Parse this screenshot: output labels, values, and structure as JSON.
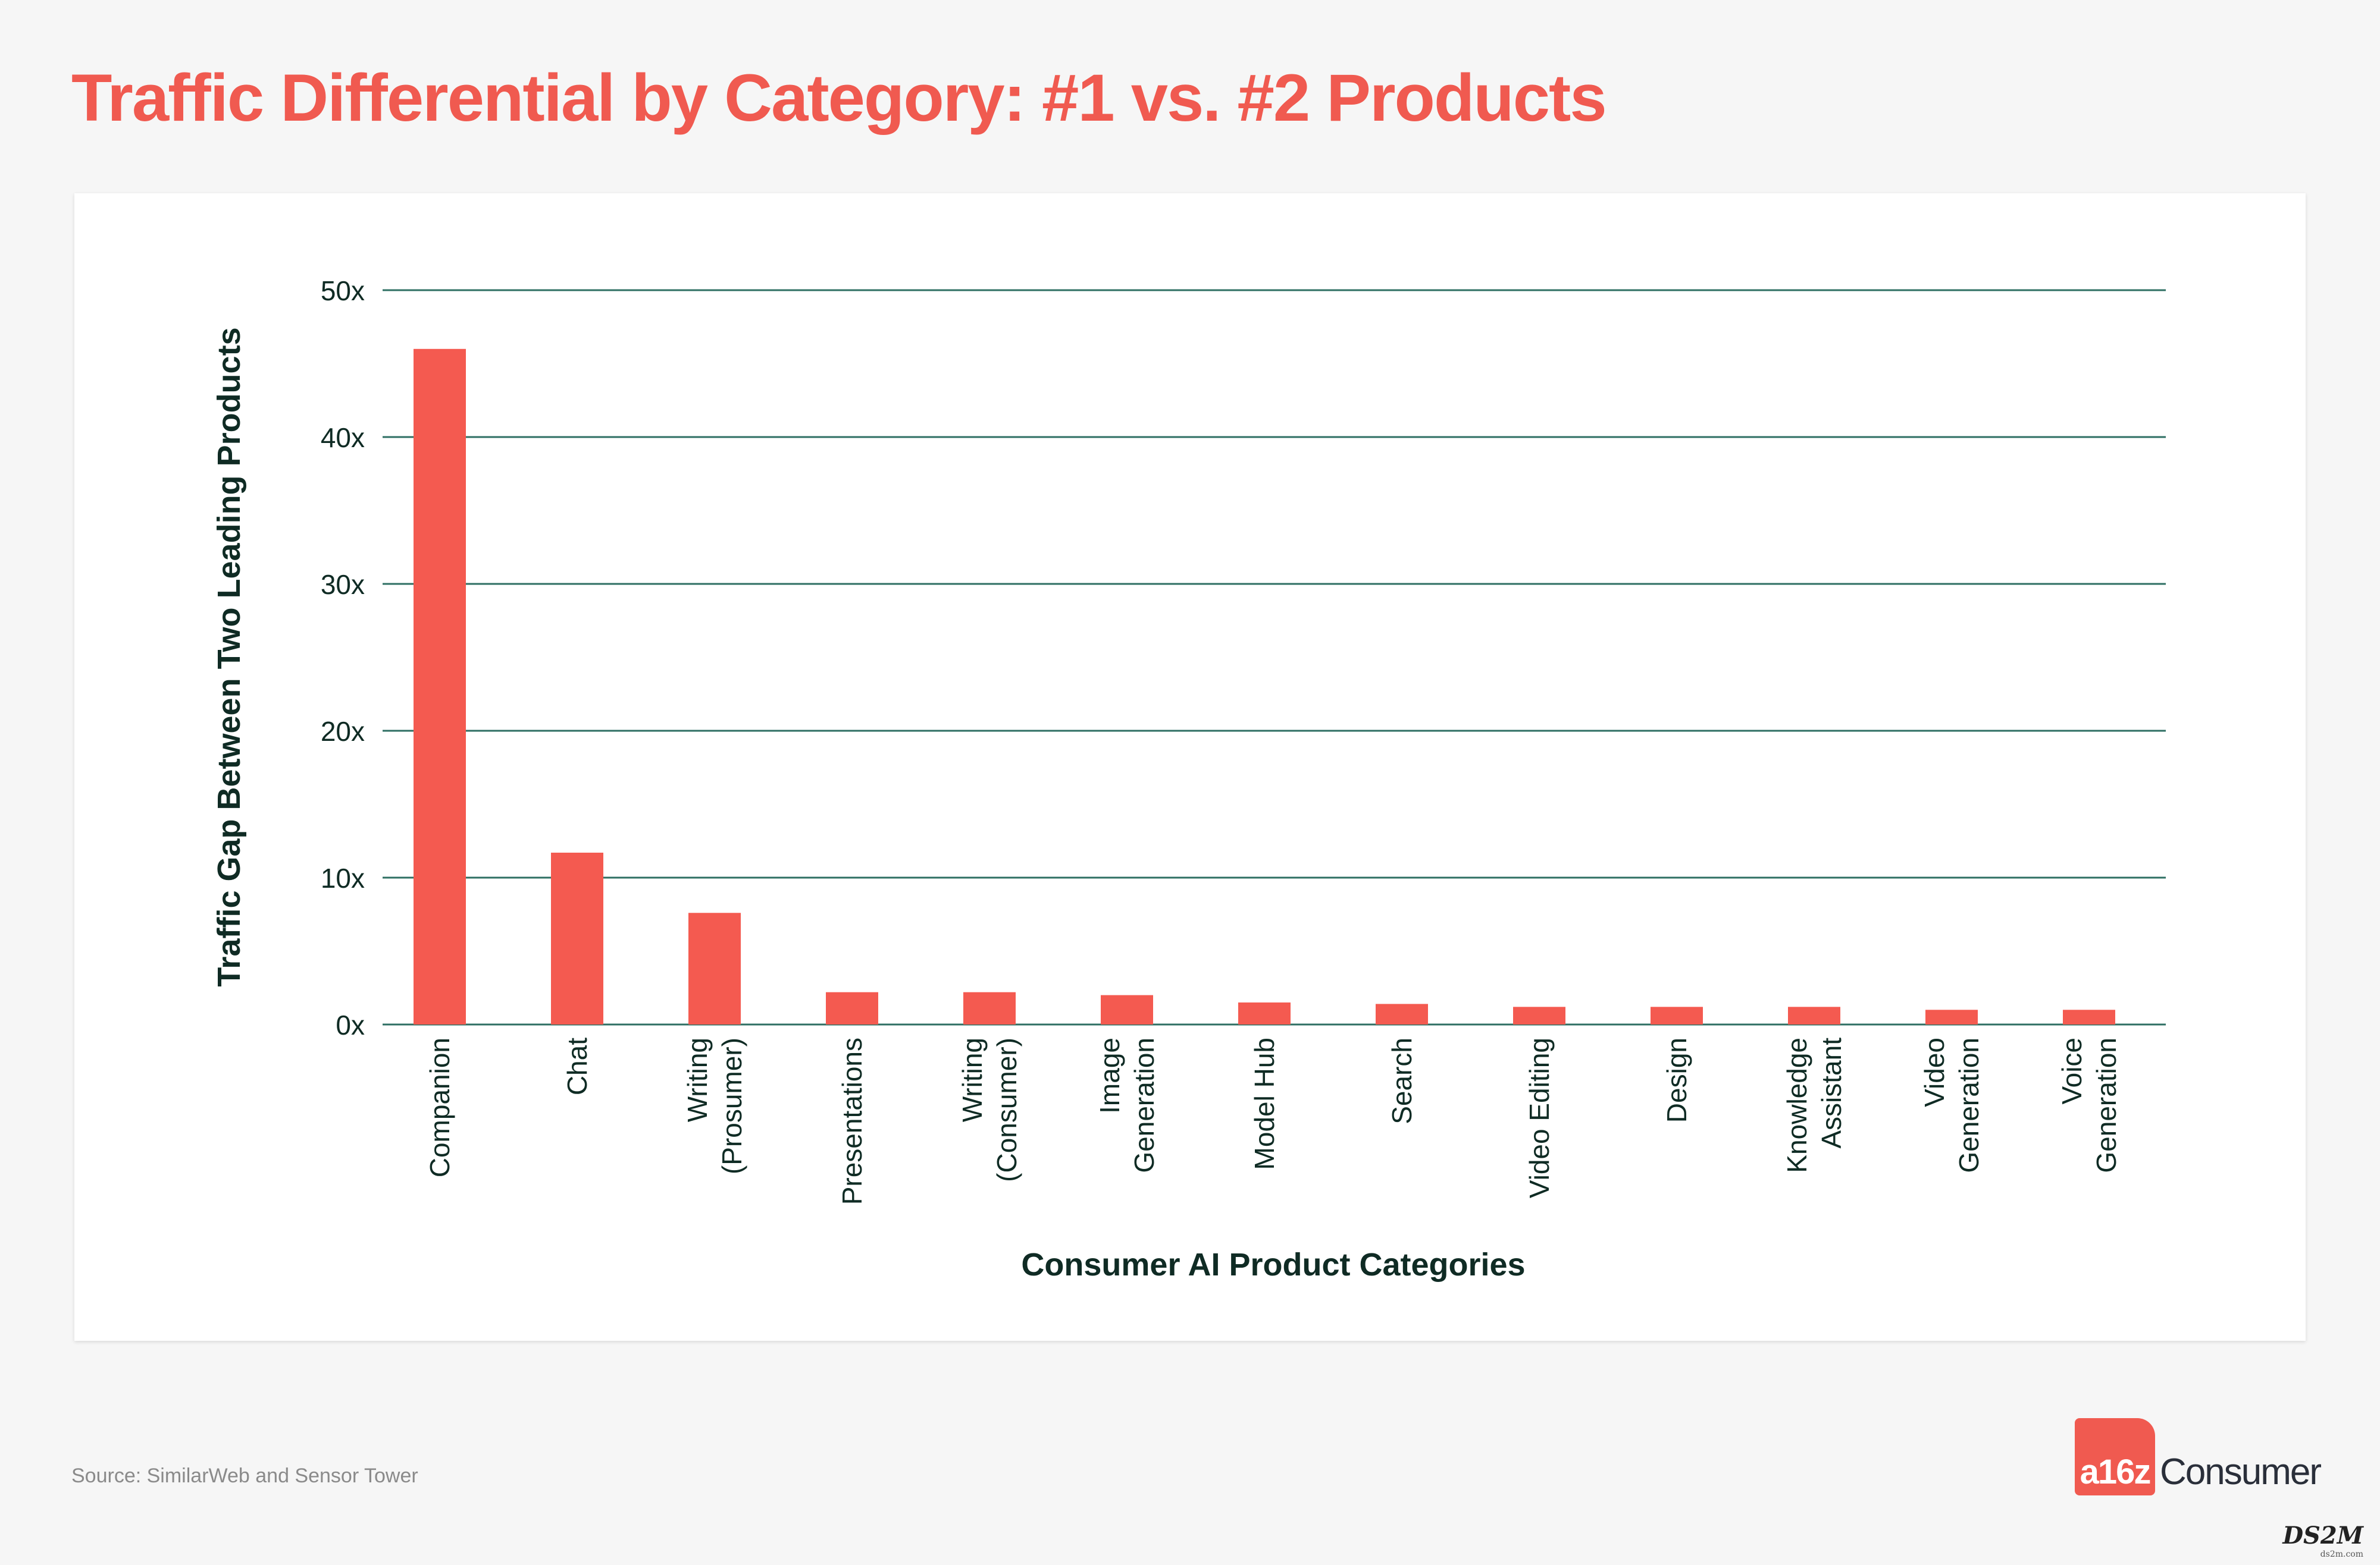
{
  "header": {
    "title": "Traffic Differential by Category: #1 vs. #2 Products"
  },
  "footer": {
    "source": "Source: SimilarWeb and Sensor Tower"
  },
  "logo": {
    "mark": "a16z",
    "text": "Consumer"
  },
  "watermark": {
    "text": "DS2M",
    "sub": "ds2m.com"
  },
  "colors": {
    "title": "#f05a50",
    "bar": "#f45a50",
    "grid": "#2e6f63",
    "axis_text": "#0f2b24"
  },
  "chart_data": {
    "type": "bar",
    "title": "",
    "xlabel": "Consumer AI Product Categories",
    "ylabel": "Traffic Gap Between Two Leading Products",
    "ylim": [
      0,
      50
    ],
    "yticks": [
      0,
      10,
      20,
      30,
      40,
      50
    ],
    "ytick_labels": [
      "0x",
      "10x",
      "20x",
      "30x",
      "40x",
      "50x"
    ],
    "grid": true,
    "categories": [
      [
        "Companion"
      ],
      [
        "Chat"
      ],
      [
        "Writing",
        "(Prosumer)"
      ],
      [
        "Presentations"
      ],
      [
        "Writing",
        "(Consumer)"
      ],
      [
        "Image",
        "Generation"
      ],
      [
        "Model Hub"
      ],
      [
        "Search"
      ],
      [
        "Video Editing"
      ],
      [
        "Design"
      ],
      [
        "Knowledge",
        "Assistant"
      ],
      [
        "Video",
        "Generation"
      ],
      [
        "Voice",
        "Generation"
      ]
    ],
    "values": [
      46.0,
      11.7,
      7.6,
      2.2,
      2.2,
      2.0,
      1.5,
      1.4,
      1.2,
      1.2,
      1.2,
      1.0,
      1.0
    ]
  }
}
